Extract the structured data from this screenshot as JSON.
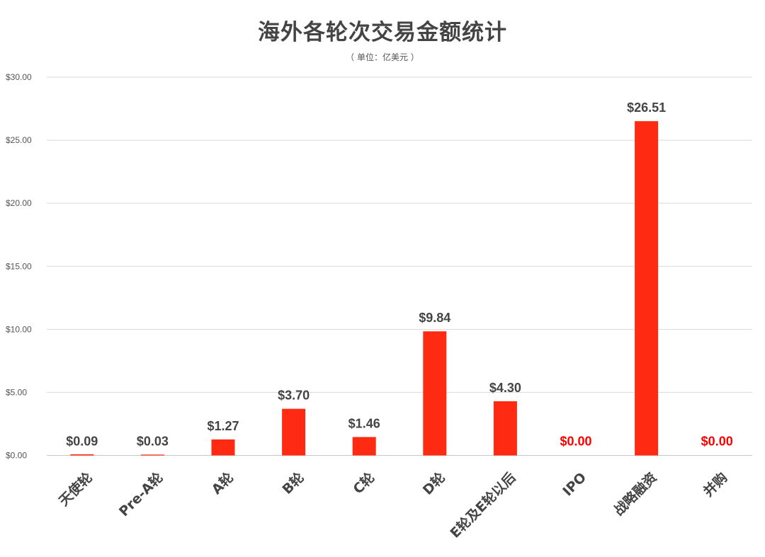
{
  "chart_data": {
    "type": "bar",
    "title": "海外各轮次交易金额统计",
    "subtitle": "（ 单位：亿美元 ）",
    "categories": [
      "天使轮",
      "Pre-A轮",
      "A轮",
      "B轮",
      "C轮",
      "D轮",
      "E轮及E轮以后",
      "IPO",
      "战略融资",
      "并购"
    ],
    "values": [
      0.09,
      0.03,
      1.27,
      3.7,
      1.46,
      9.84,
      4.3,
      0.0,
      26.51,
      0.0
    ],
    "data_labels": [
      "$0.09",
      "$0.03",
      "$1.27",
      "$3.70",
      "$1.46",
      "$9.84",
      "$4.30",
      "$0.00",
      "$26.51",
      "$0.00"
    ],
    "y_ticks": [
      "$0.00",
      "$5.00",
      "$10.00",
      "$15.00",
      "$20.00",
      "$25.00",
      "$30.00"
    ],
    "y_tick_values": [
      0,
      5,
      10,
      15,
      20,
      25,
      30
    ],
    "ylim": [
      0,
      30
    ],
    "grid": true,
    "legend": "none",
    "bar_color": "#ff2a12",
    "zero_label_color": "#ff0000",
    "label_color": "#444444"
  }
}
